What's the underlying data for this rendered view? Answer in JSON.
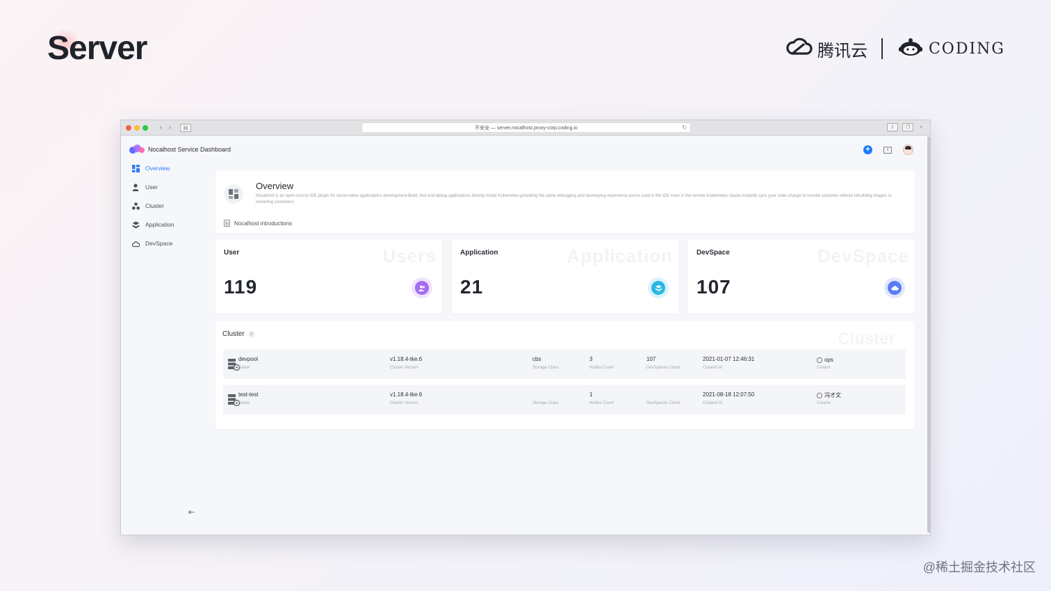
{
  "slide": {
    "title": "Server",
    "brand_tencent": "腾讯云",
    "brand_coding": "CODING",
    "watermark": "@稀土掘金技术社区"
  },
  "browser": {
    "url": "不安全 — server.nocalhost.proxy-corp.coding.io"
  },
  "app": {
    "title": "Nocalhost Service Dashboard"
  },
  "sidebar": {
    "items": [
      {
        "label": "Overview",
        "icon": "overview-icon",
        "active": true
      },
      {
        "label": "User",
        "icon": "user-icon",
        "active": false
      },
      {
        "label": "Cluster",
        "icon": "cluster-icon",
        "active": false
      },
      {
        "label": "Application",
        "icon": "application-icon",
        "active": false
      },
      {
        "label": "DevSpace",
        "icon": "devspace-icon",
        "active": false
      }
    ]
  },
  "overview": {
    "title": "Overview",
    "description": "Nocalhost is an open-source IDE plugin for cloud-native applications development.Build, test and debug applications directly inside Kubernetes,providing the same debugging and developing experience you're used in the IDE even in the remote Kubernetes cluster,instantly sync your code change to remote container without rebuilding images or restarting containers.",
    "link": "Nocalhost introductions"
  },
  "stats": [
    {
      "label": "User",
      "ghost": "Users",
      "value": "119",
      "color": "#a66bf0"
    },
    {
      "label": "Application",
      "ghost": "Application",
      "value": "21",
      "color": "#2ab7e6"
    },
    {
      "label": "DevSpace",
      "ghost": "DevSpace",
      "value": "107",
      "color": "#5a7df3"
    }
  ],
  "cluster": {
    "title": "Cluster",
    "count": "2",
    "ghost": "Cluster",
    "labels": {
      "name": "Name",
      "version": "Cluster Version",
      "storage": "Storage Class",
      "nodes": "Nodes Count",
      "devspaces": "DevSpaces Count",
      "created": "Created At",
      "creator": "Creator"
    },
    "rows": [
      {
        "name": "devpool",
        "version": "v1.18.4-tke.6",
        "storage": "cbs",
        "nodes": "3",
        "devspaces": "107",
        "created": "2021-01-07 12:46:31",
        "creator": "ops"
      },
      {
        "name": "test-test",
        "version": "v1.18.4-tke.6",
        "storage": "",
        "nodes": "1",
        "devspaces": "",
        "created": "2021-08-18 12:07:50",
        "creator": "冯才文"
      }
    ]
  }
}
